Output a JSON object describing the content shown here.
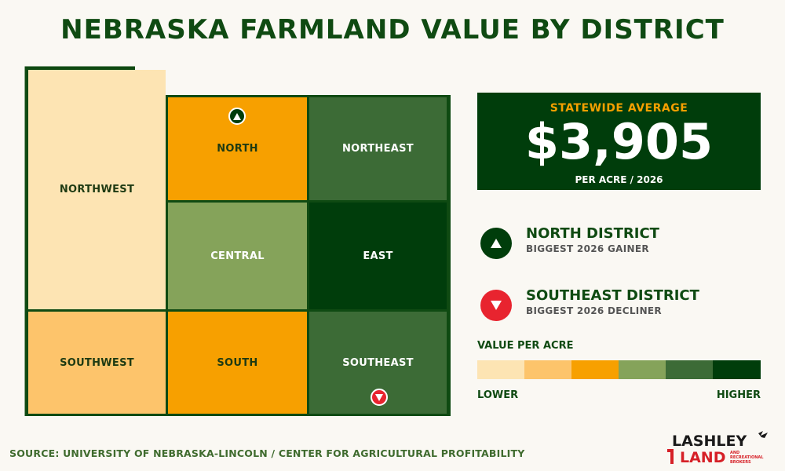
{
  "title": "NEBRASKA FARMLAND VALUE BY DISTRICT",
  "districts": {
    "northwest": {
      "label": "NORTHWEST",
      "color": "#fde4b3"
    },
    "north": {
      "label": "NORTH",
      "color": "#f7a000"
    },
    "northeast": {
      "label": "NORTHEAST",
      "color": "#3c6b36"
    },
    "central": {
      "label": "CENTRAL",
      "color": "#85a35a"
    },
    "east": {
      "label": "EAST",
      "color": "#003d0b"
    },
    "southwest": {
      "label": "SOUTHWEST",
      "color": "#fdc46b"
    },
    "south": {
      "label": "SOUTH",
      "color": "#f7a000"
    },
    "southeast": {
      "label": "SOUTHEAST",
      "color": "#3c6b36"
    }
  },
  "stat": {
    "label": "STATEWIDE AVERAGE",
    "value": "$3,905",
    "sub": "PER ACRE / 2026"
  },
  "callouts": [
    {
      "title": "NORTH DISTRICT",
      "sub": "BIGGEST 2026 GAINER",
      "icon": "triangle-up-icon",
      "color": "#003d0b"
    },
    {
      "title": "SOUTHEAST DISTRICT",
      "sub": "BIGGEST 2026 DECLINER",
      "icon": "triangle-down-icon",
      "color": "#e8242f"
    }
  ],
  "legend": {
    "title": "VALUE PER ACRE",
    "low": "LOWER",
    "high": "HIGHER",
    "colors": [
      "#fde4b3",
      "#fdc46b",
      "#f7a000",
      "#85a35a",
      "#3c6b36",
      "#003d0b"
    ]
  },
  "source": "SOURCE: UNIVERSITY OF NEBRASKA-LINCOLN / CENTER FOR AGRICULTURAL PROFITABILITY",
  "logo": {
    "line1": "LASHLEY",
    "line2": "LAND",
    "tag1": "AND",
    "tag2": "RECREATIONAL",
    "tag3": "BROKERS"
  }
}
